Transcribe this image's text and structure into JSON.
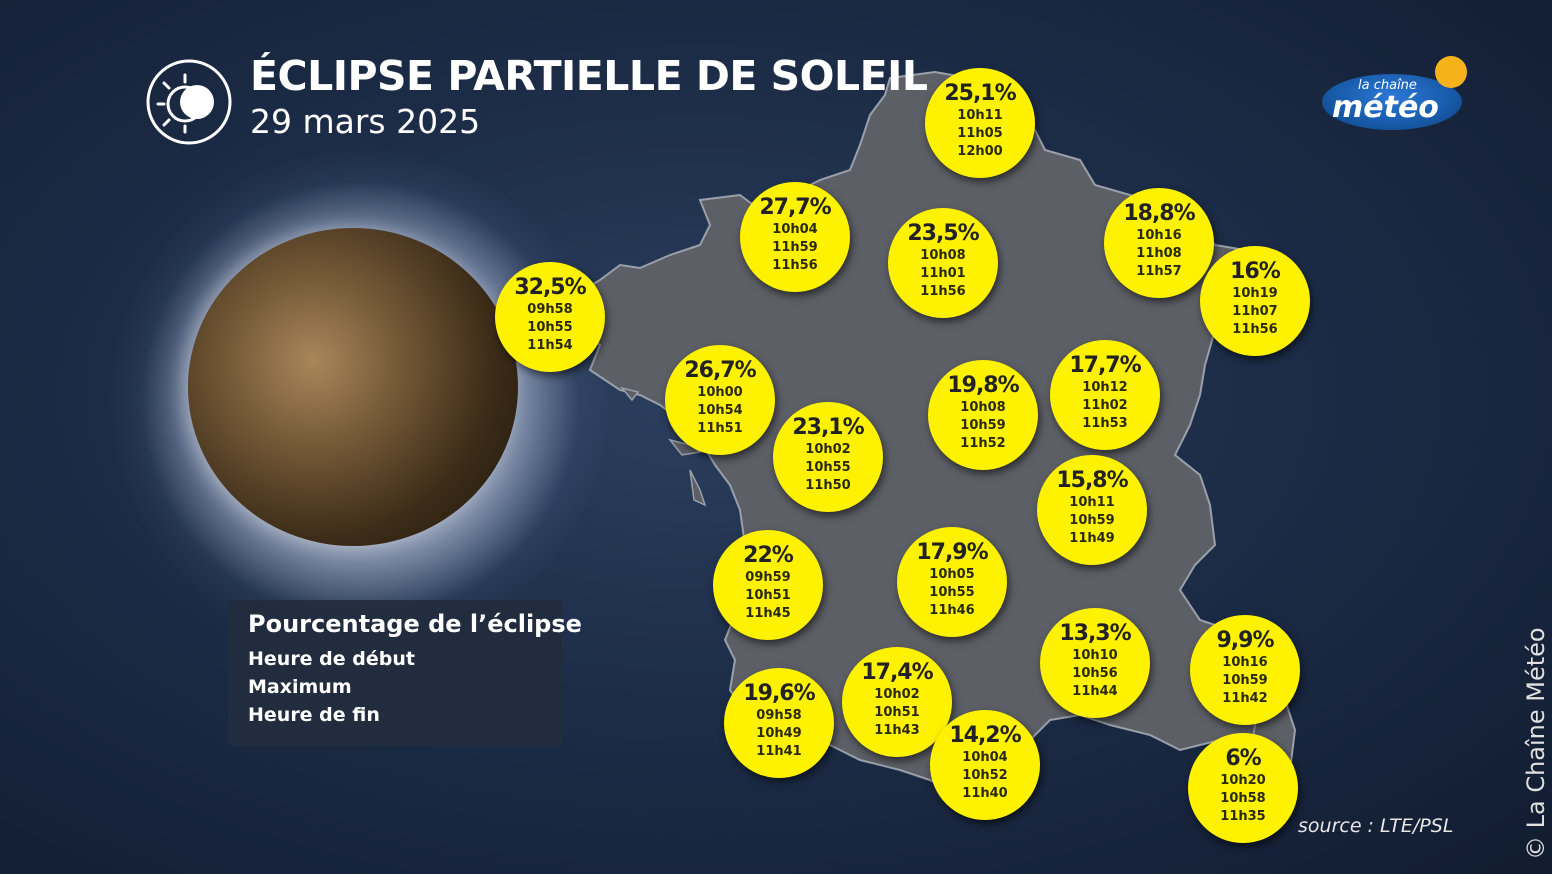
{
  "header": {
    "title": "ÉCLIPSE PARTIELLE DE SOLEIL",
    "subtitle": "29 mars 2025"
  },
  "legend": {
    "title": "Pourcentage de l’éclipse",
    "row_start": "Heure de début",
    "row_max": "Maximum",
    "row_end": "Heure de fin"
  },
  "brand": {
    "small": "la chaîne",
    "big": "météo",
    "sun_color": "#f6b21a",
    "oval_color": "#175aa8"
  },
  "source": "source : LTE/PSL",
  "copyright": "© La Chaîne Météo",
  "colors": {
    "bubble": "#fff200",
    "background": "#1d2d48",
    "land": "#5d6066"
  },
  "cities": [
    {
      "pct": "25,1%",
      "start": "10h11",
      "max": "11h05",
      "end": "12h00"
    },
    {
      "pct": "27,7%",
      "start": "10h04",
      "max": "11h59",
      "end": "11h56"
    },
    {
      "pct": "23,5%",
      "start": "10h08",
      "max": "11h01",
      "end": "11h56"
    },
    {
      "pct": "18,8%",
      "start": "10h16",
      "max": "11h08",
      "end": "11h57"
    },
    {
      "pct": "16%",
      "start": "10h19",
      "max": "11h07",
      "end": "11h56"
    },
    {
      "pct": "32,5%",
      "start": "09h58",
      "max": "10h55",
      "end": "11h54"
    },
    {
      "pct": "26,7%",
      "start": "10h00",
      "max": "10h54",
      "end": "11h51"
    },
    {
      "pct": "23,1%",
      "start": "10h02",
      "max": "10h55",
      "end": "11h50"
    },
    {
      "pct": "19,8%",
      "start": "10h08",
      "max": "10h59",
      "end": "11h52"
    },
    {
      "pct": "17,7%",
      "start": "10h12",
      "max": "11h02",
      "end": "11h53"
    },
    {
      "pct": "15,8%",
      "start": "10h11",
      "max": "10h59",
      "end": "11h49"
    },
    {
      "pct": "22%",
      "start": "09h59",
      "max": "10h51",
      "end": "11h45"
    },
    {
      "pct": "17,9%",
      "start": "10h05",
      "max": "10h55",
      "end": "11h46"
    },
    {
      "pct": "13,3%",
      "start": "10h10",
      "max": "10h56",
      "end": "11h44"
    },
    {
      "pct": "9,9%",
      "start": "10h16",
      "max": "10h59",
      "end": "11h42"
    },
    {
      "pct": "19,6%",
      "start": "09h58",
      "max": "10h49",
      "end": "11h41"
    },
    {
      "pct": "17,4%",
      "start": "10h02",
      "max": "10h51",
      "end": "11h43"
    },
    {
      "pct": "14,2%",
      "start": "10h04",
      "max": "10h52",
      "end": "11h40"
    },
    {
      "pct": "6%",
      "start": "10h20",
      "max": "10h58",
      "end": "11h35"
    }
  ]
}
